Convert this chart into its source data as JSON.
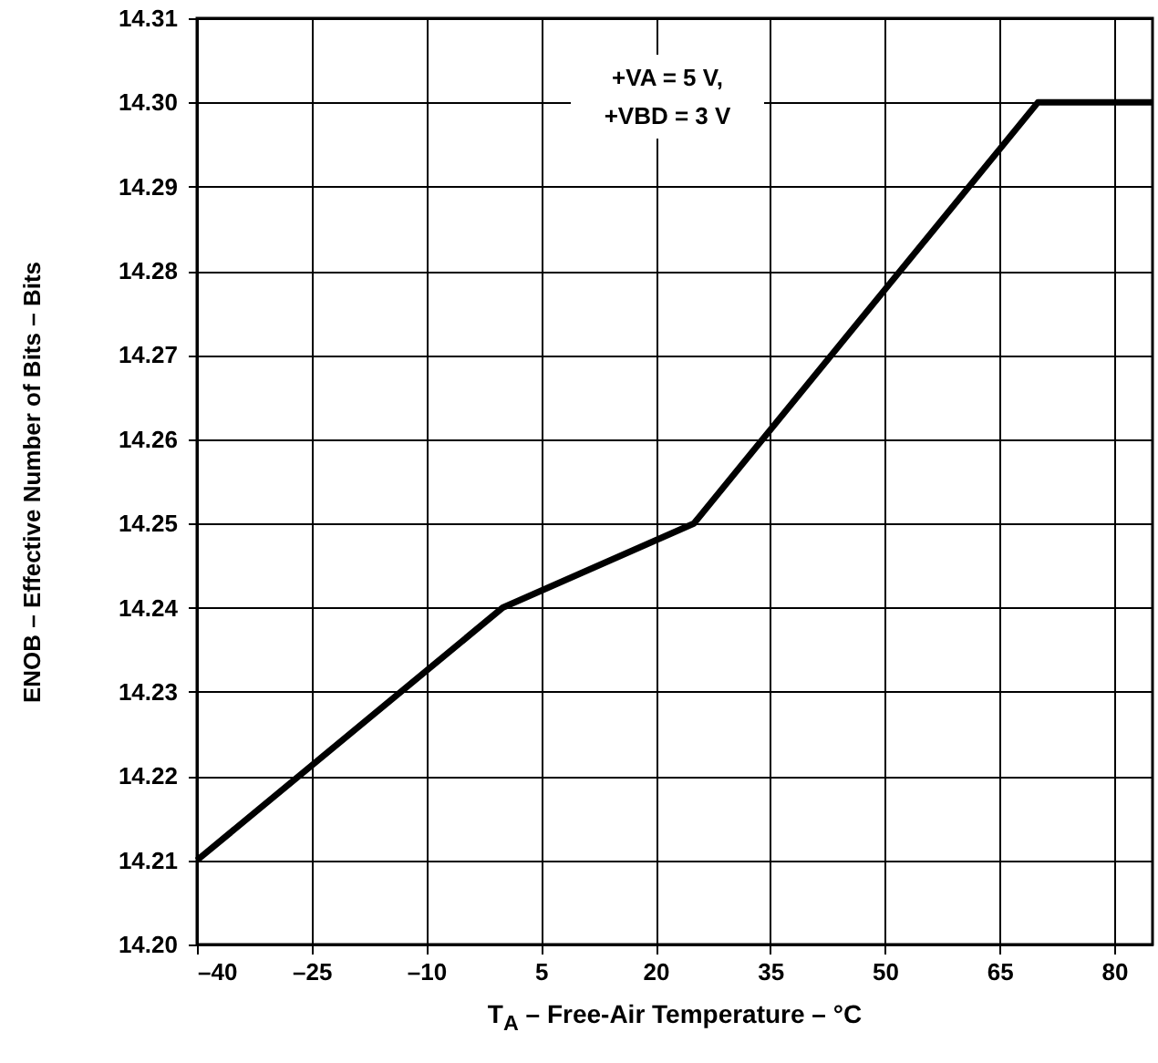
{
  "chart_data": {
    "type": "line",
    "xlabel": "T$_{A}$ – Free-Air Temperature – °C",
    "ylabel": "ENOB – Effective Number of Bits – Bits",
    "annotations": [
      "+VA = 5 V,",
      "+VBD = 3 V"
    ],
    "x": [
      -40,
      0,
      25,
      70,
      85
    ],
    "series": [
      {
        "color": "#000000",
        "values": [
          14.21,
          14.24,
          14.25,
          14.3,
          14.3
        ]
      }
    ],
    "xlim": [
      -40,
      85
    ],
    "ylim": [
      14.2,
      14.31
    ],
    "xticks": [
      {
        "value": -40,
        "label": "–40"
      },
      {
        "value": -25,
        "label": "–25"
      },
      {
        "value": -10,
        "label": "–10"
      },
      5,
      20,
      35,
      50,
      65,
      80
    ],
    "yticks": [
      {
        "value": 14.2,
        "label": "14.20"
      },
      14.21,
      14.22,
      14.23,
      14.24,
      14.25,
      14.26,
      14.27,
      14.28,
      14.29,
      {
        "value": 14.3,
        "label": "14.30"
      },
      14.31
    ],
    "grid": true,
    "marker": "none",
    "line_style": "solid"
  }
}
